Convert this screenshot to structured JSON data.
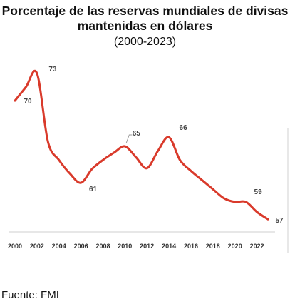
{
  "chart_data": {
    "type": "line",
    "title": "Porcentaje de las reservas mundiales de divisas mantenidas en dólares",
    "subtitle": "(2000-2023)",
    "xlabel": "",
    "ylabel": "",
    "x": [
      2000,
      2001,
      2002,
      2003,
      2004,
      2005,
      2006,
      2007,
      2008,
      2009,
      2010,
      2011,
      2012,
      2013,
      2014,
      2015,
      2016,
      2017,
      2018,
      2019,
      2020,
      2021,
      2022,
      2023
    ],
    "series": [
      {
        "name": "",
        "values": [
          70,
          71.5,
          73,
          65.5,
          63.5,
          62,
          61,
          62.5,
          63.5,
          64.3,
          65,
          63.8,
          62.6,
          64.5,
          66,
          63.5,
          62.3,
          61.3,
          60.3,
          59.3,
          58.9,
          58.9,
          57.8,
          57
        ],
        "color": "#d93a2b"
      }
    ],
    "point_labels": [
      {
        "x": 2000,
        "text": "70"
      },
      {
        "x": 2002,
        "text": "73"
      },
      {
        "x": 2006,
        "text": "61"
      },
      {
        "x": 2010,
        "text": "65"
      },
      {
        "x": 2014,
        "text": "66"
      },
      {
        "x": 2021,
        "text": "59"
      },
      {
        "x": 2023,
        "text": "57"
      }
    ],
    "xticks": [
      "2000",
      "2002",
      "2004",
      "2006",
      "2008",
      "2010",
      "2012",
      "2014",
      "2016",
      "2018",
      "2020",
      "2022"
    ],
    "xlim": [
      2000,
      2023
    ],
    "ylim": [
      56,
      74
    ],
    "grid": false,
    "legend": "none"
  },
  "source": "Fuente: FMI"
}
